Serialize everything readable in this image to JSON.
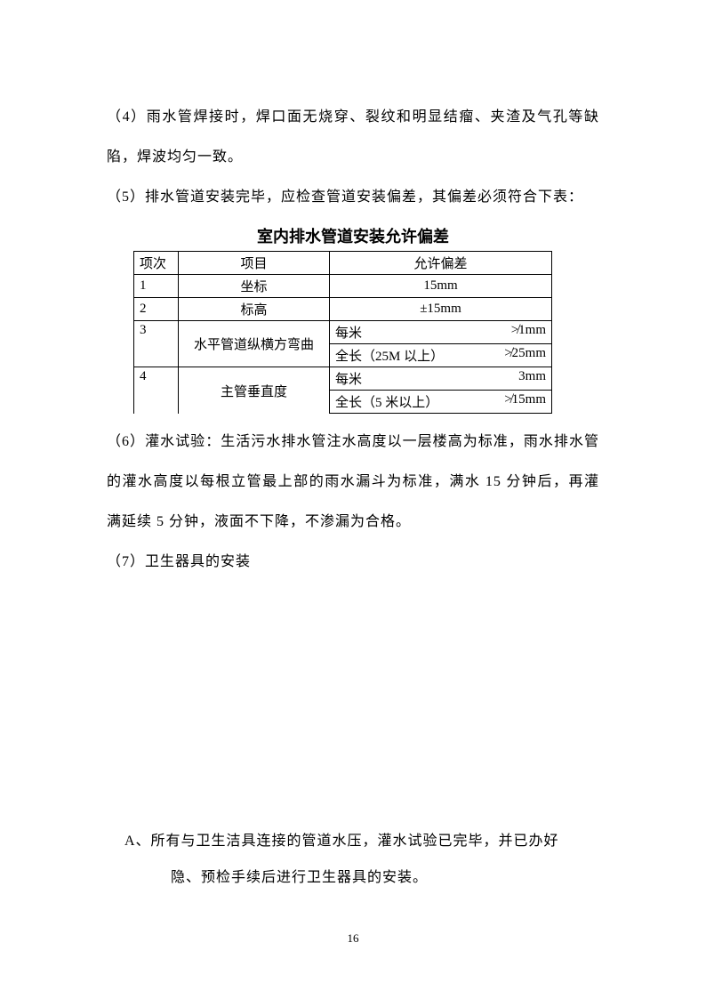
{
  "paragraphs": {
    "p4": "（4）雨水管焊接时，焊口面无烧穿、裂纹和明显结瘤、夹渣及气孔等缺陷，焊波均匀一致。",
    "p5": "（5）排水管道安装完毕，应检查管道安装偏差，其偏差必须符合下表：",
    "p6": "（6）灌水试验：生活污水排水管注水高度以一层楼高为标准，雨水排水管的灌水高度以每根立管最上部的雨水漏斗为标准，满水 15 分钟后，再灌满延续 5 分钟，液面不下降，不渗漏为合格。",
    "p7": "（7）卫生器具的安装",
    "itemA_line1": "A、所有与卫生洁具连接的管道水压，灌水试验已完毕，并已办好",
    "itemA_line2": "隐、预检手续后进行卫生器具的安装。"
  },
  "table": {
    "title": "室内排水管道安装允许偏差",
    "headers": {
      "col1": "项次",
      "col2": "项目",
      "col3": "允许偏差"
    },
    "rows": {
      "r1": {
        "idx": "1",
        "item": "坐标",
        "tol": "15mm"
      },
      "r2": {
        "idx": "2",
        "item": "标高",
        "tol": "±15mm"
      },
      "r3": {
        "idx": "3",
        "item": "水平管道纵横方弯曲",
        "sub1_left": "每米",
        "sub1_right": "≯1mm",
        "sub2_left": "全长（25M 以上）",
        "sub2_right": "≯25mm"
      },
      "r4": {
        "idx": "4",
        "item": "主管垂直度",
        "sub1_left": "每米",
        "sub1_right": "3mm",
        "sub2_left": "全长（5 米以上）",
        "sub2_right": "≯15mm"
      }
    }
  },
  "pageNumber": "16"
}
